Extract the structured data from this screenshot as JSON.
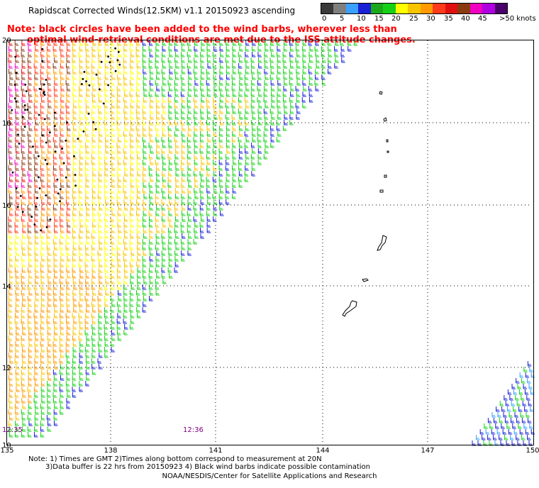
{
  "title": "Rapidscat Corrected Winds(12.5KM) v1.1 20150923 ascending",
  "note": {
    "line1": "Note: black circles have been added to the wind barbs, wherever less than",
    "line2": "optimal wind-retrieval conditions are met due to the ISS attitude changes."
  },
  "scale": {
    "colors": [
      "#3a3a3a",
      "#7f7f7f",
      "#3aa0ff",
      "#1a20d6",
      "#1aa81a",
      "#16d016",
      "#ffff00",
      "#f7c400",
      "#ff9a00",
      "#ff3a1a",
      "#e01010",
      "#8a3a10",
      "#f000c0",
      "#b000e0",
      "#4a006a"
    ],
    "labels": [
      "0",
      "5",
      "10",
      "15",
      "20",
      "25",
      "30",
      "35",
      "40",
      "45",
      ">50 knots"
    ]
  },
  "map": {
    "lat_labels": [
      "20",
      "18",
      "16",
      "14",
      "12",
      "10"
    ],
    "lon_labels": [
      "135",
      "138",
      "141",
      "144",
      "147",
      "150"
    ],
    "time_labels": [
      "12:35",
      "12:36"
    ],
    "time_colors": [
      "#800080",
      "#800080"
    ]
  },
  "footer": {
    "line1": "Note: 1) Times are GMT 2)Times along bottom correspond to measurement at 20N",
    "line2": "3)Data buffer is 22 hrs from 20150923 4) Black wind barbs indicate possible contamination",
    "credit": "NOAA/NESDIS/Center for Satellite Applications and Research"
  }
}
